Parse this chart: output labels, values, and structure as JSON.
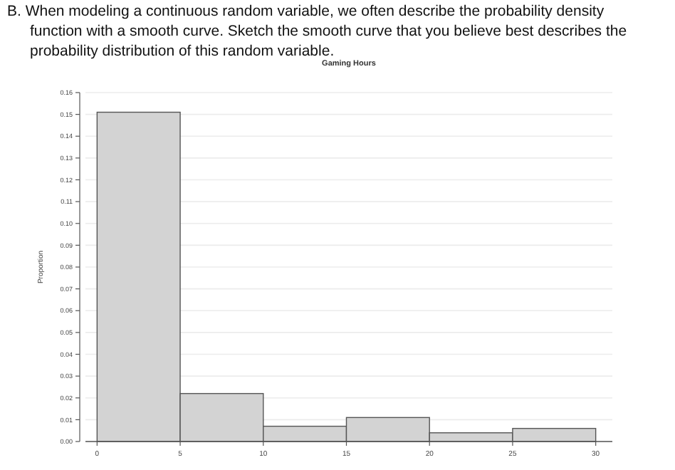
{
  "chart_data": {
    "type": "histogram",
    "title": "Gaming Hours",
    "ylabel": "Proportion",
    "annotations": [
      "B. When modeling a continuous random variable, we often describe the probability density function with a smooth curve. Sketch the smooth curve that you believe best describes the probability distribution of this random variable."
    ],
    "bins": [
      0,
      5,
      10,
      15,
      20,
      25,
      30
    ],
    "values": [
      0.151,
      0.022,
      0.007,
      0.011,
      0.004,
      0.006
    ],
    "color": "#d3d3d3",
    "xlim": [
      -0.7,
      31
    ],
    "xticks": [
      0,
      5,
      10,
      15,
      20,
      25,
      30
    ],
    "ylim": [
      0,
      0.16
    ],
    "yticks": [
      {
        "value": 0,
        "label": "0.00"
      },
      {
        "value": 0.01,
        "label": "0.01"
      },
      {
        "value": 0.02,
        "label": "0.02"
      },
      {
        "value": 0.03,
        "label": "0.03"
      },
      {
        "value": 0.04,
        "label": "0.04"
      },
      {
        "value": 0.05,
        "label": "0.05"
      },
      {
        "value": 0.06,
        "label": "0.06"
      },
      {
        "value": 0.07,
        "label": "0.07"
      },
      {
        "value": 0.08,
        "label": "0.08"
      },
      {
        "value": 0.09,
        "label": "0.09"
      },
      {
        "value": 0.1,
        "label": "0.10"
      },
      {
        "value": 0.11,
        "label": "0.11"
      },
      {
        "value": 0.12,
        "label": "0.12"
      },
      {
        "value": 0.13,
        "label": "0.13"
      },
      {
        "value": 0.14,
        "label": "0.14"
      },
      {
        "value": 0.15,
        "label": "0.15"
      },
      {
        "value": 0.16,
        "label": "0.16"
      }
    ],
    "grid": "y"
  }
}
